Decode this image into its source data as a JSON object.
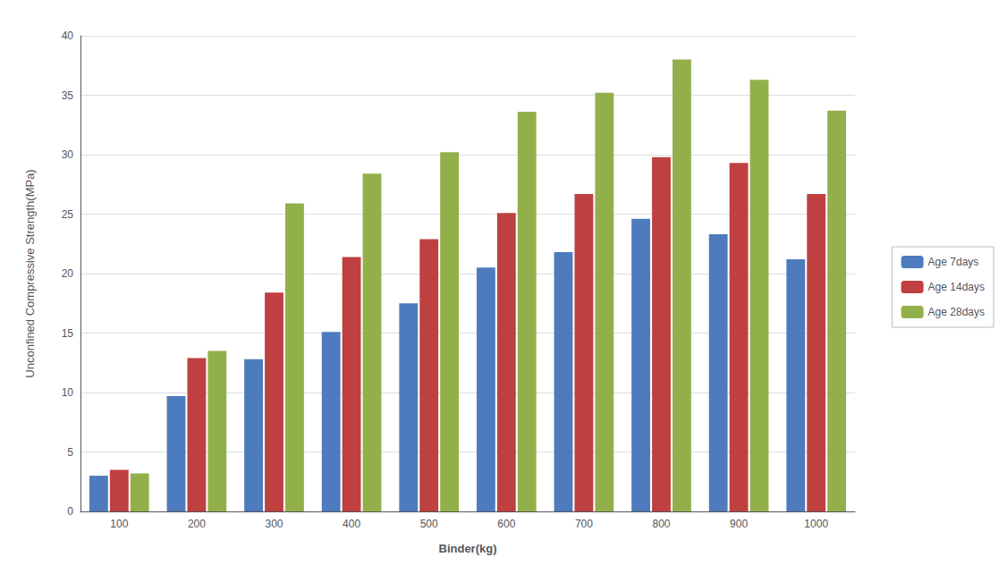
{
  "chart_data": {
    "type": "bar",
    "xlabel": "Binder(kg)",
    "ylabel": "Unconfined Compressive Strength(MPa)",
    "categories": [
      100,
      200,
      300,
      400,
      500,
      600,
      700,
      800,
      900,
      1000
    ],
    "series": [
      {
        "name": "Age 7days",
        "color": "#4e7bbd",
        "values": [
          3.0,
          9.7,
          12.8,
          15.1,
          17.5,
          20.5,
          21.8,
          24.6,
          23.3,
          21.2
        ]
      },
      {
        "name": "Age 14days",
        "color": "#bf4040",
        "values": [
          3.5,
          12.9,
          18.4,
          21.4,
          22.9,
          25.1,
          26.7,
          29.8,
          29.3,
          26.7
        ]
      },
      {
        "name": "Age 28days",
        "color": "#92b04a",
        "values": [
          3.2,
          13.5,
          25.9,
          28.4,
          30.2,
          33.6,
          35.2,
          38.0,
          36.3,
          33.7
        ]
      }
    ],
    "ylim": [
      0,
      40
    ],
    "yticks": [
      0,
      5,
      10,
      15,
      20,
      25,
      30,
      35,
      40
    ],
    "grid": true,
    "legend": "right"
  }
}
